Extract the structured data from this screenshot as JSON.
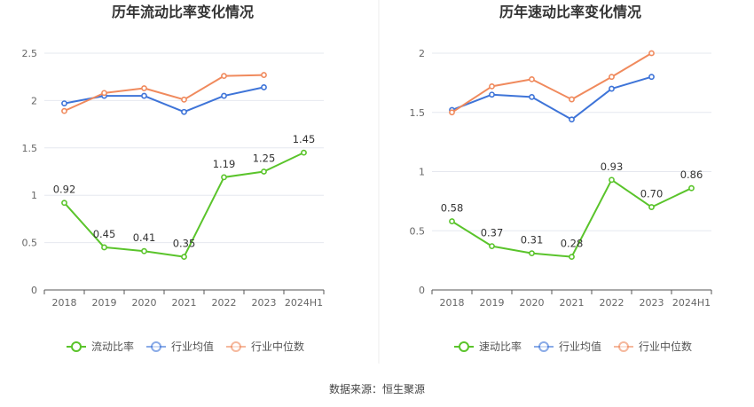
{
  "source": "数据来源：恒生聚源",
  "colors": {
    "main": "#5ac42b",
    "avg": "#3e74d8",
    "median": "#f08a5d",
    "grid": "#e6e8ef",
    "axis": "#555555"
  },
  "chart_data": [
    {
      "type": "line",
      "title": "历年流动比率变化情况",
      "categories": [
        "2018",
        "2019",
        "2020",
        "2021",
        "2022",
        "2023",
        "2024H1"
      ],
      "ylim": [
        0,
        2.5
      ],
      "yticks": [
        "0",
        "0.5",
        "1",
        "1.5",
        "2",
        "2.5"
      ],
      "series": [
        {
          "name": "流动比率",
          "role": "main",
          "values": [
            0.92,
            0.45,
            0.41,
            0.35,
            1.19,
            1.25,
            1.45
          ],
          "labels": [
            "0.92",
            "0.45",
            "0.41",
            "0.35",
            "1.19",
            "1.25",
            "1.45"
          ]
        },
        {
          "name": "行业均值",
          "role": "avg",
          "values": [
            1.97,
            2.05,
            2.05,
            1.88,
            2.05,
            2.14,
            null
          ]
        },
        {
          "name": "行业中位数",
          "role": "median",
          "values": [
            1.89,
            2.08,
            2.13,
            2.01,
            2.26,
            2.27,
            null
          ]
        }
      ]
    },
    {
      "type": "line",
      "title": "历年速动比率变化情况",
      "categories": [
        "2018",
        "2019",
        "2020",
        "2021",
        "2022",
        "2023",
        "2024H1"
      ],
      "ylim": [
        0,
        2
      ],
      "yticks": [
        "0",
        "0.5",
        "1",
        "1.5",
        "2"
      ],
      "series": [
        {
          "name": "速动比率",
          "role": "main",
          "values": [
            0.58,
            0.37,
            0.31,
            0.28,
            0.93,
            0.7,
            0.86
          ],
          "labels": [
            "0.58",
            "0.37",
            "0.31",
            "0.28",
            "0.93",
            "0.70",
            "0.86"
          ]
        },
        {
          "name": "行业均值",
          "role": "avg",
          "values": [
            1.52,
            1.65,
            1.63,
            1.44,
            1.7,
            1.8,
            null
          ]
        },
        {
          "name": "行业中位数",
          "role": "median",
          "values": [
            1.5,
            1.72,
            1.78,
            1.61,
            1.8,
            2.0,
            null
          ]
        }
      ]
    }
  ]
}
